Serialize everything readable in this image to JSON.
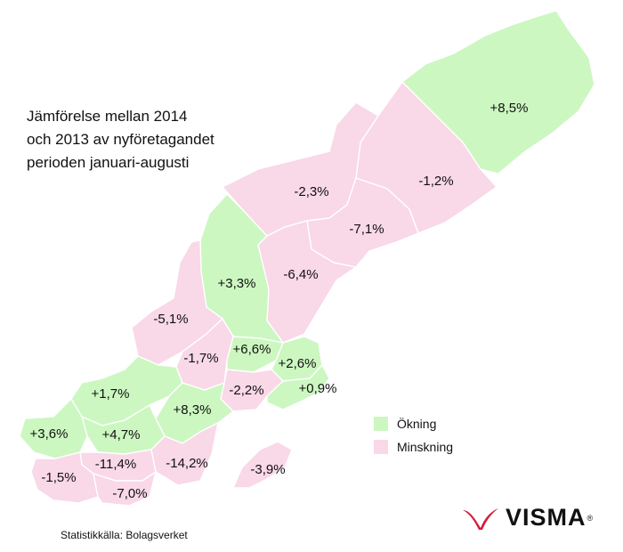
{
  "title_lines": [
    "Jämförelse mellan 2014",
    "och 2013 av nyföretagandet",
    "perioden januari-augusti"
  ],
  "source": "Statistikkälla: Bolagsverket",
  "legend": {
    "increase": {
      "label": "Ökning",
      "color": "#ccf7c1"
    },
    "decrease": {
      "label": "Minskning",
      "color": "#f9d8e8"
    }
  },
  "logo": {
    "text": "VISMA",
    "mark": "®",
    "color": "#d61a3c"
  },
  "regions": [
    {
      "name": "norrbotten",
      "value": "+8,5%"
    },
    {
      "name": "vasterbotten",
      "value": "-1,2%"
    },
    {
      "name": "jamtland",
      "value": "-2,3%"
    },
    {
      "name": "vasternorrland",
      "value": "-7,1%"
    },
    {
      "name": "gavleborg",
      "value": "-6,4%"
    },
    {
      "name": "dalarna",
      "value": "+3,3%"
    },
    {
      "name": "varmland",
      "value": "-5,1%"
    },
    {
      "name": "orebro",
      "value": "-1,7%"
    },
    {
      "name": "vastmanland",
      "value": "+6,6%"
    },
    {
      "name": "uppsala",
      "value": "+2,6%"
    },
    {
      "name": "sodermanland",
      "value": "-2,2%"
    },
    {
      "name": "stockholm",
      "value": "+0,9%"
    },
    {
      "name": "vastra-gotaland",
      "value": "+1,7%"
    },
    {
      "name": "ostergotland",
      "value": "+8,3%"
    },
    {
      "name": "jonkoping",
      "value": "+4,7%"
    },
    {
      "name": "halland",
      "value": "+3,6%"
    },
    {
      "name": "kronoberg",
      "value": "-11,4%"
    },
    {
      "name": "kalmar",
      "value": "-14,2%"
    },
    {
      "name": "gotland",
      "value": "-3,9%"
    },
    {
      "name": "skane",
      "value": "-1,5%"
    },
    {
      "name": "blekinge",
      "value": "-7,0%"
    }
  ]
}
